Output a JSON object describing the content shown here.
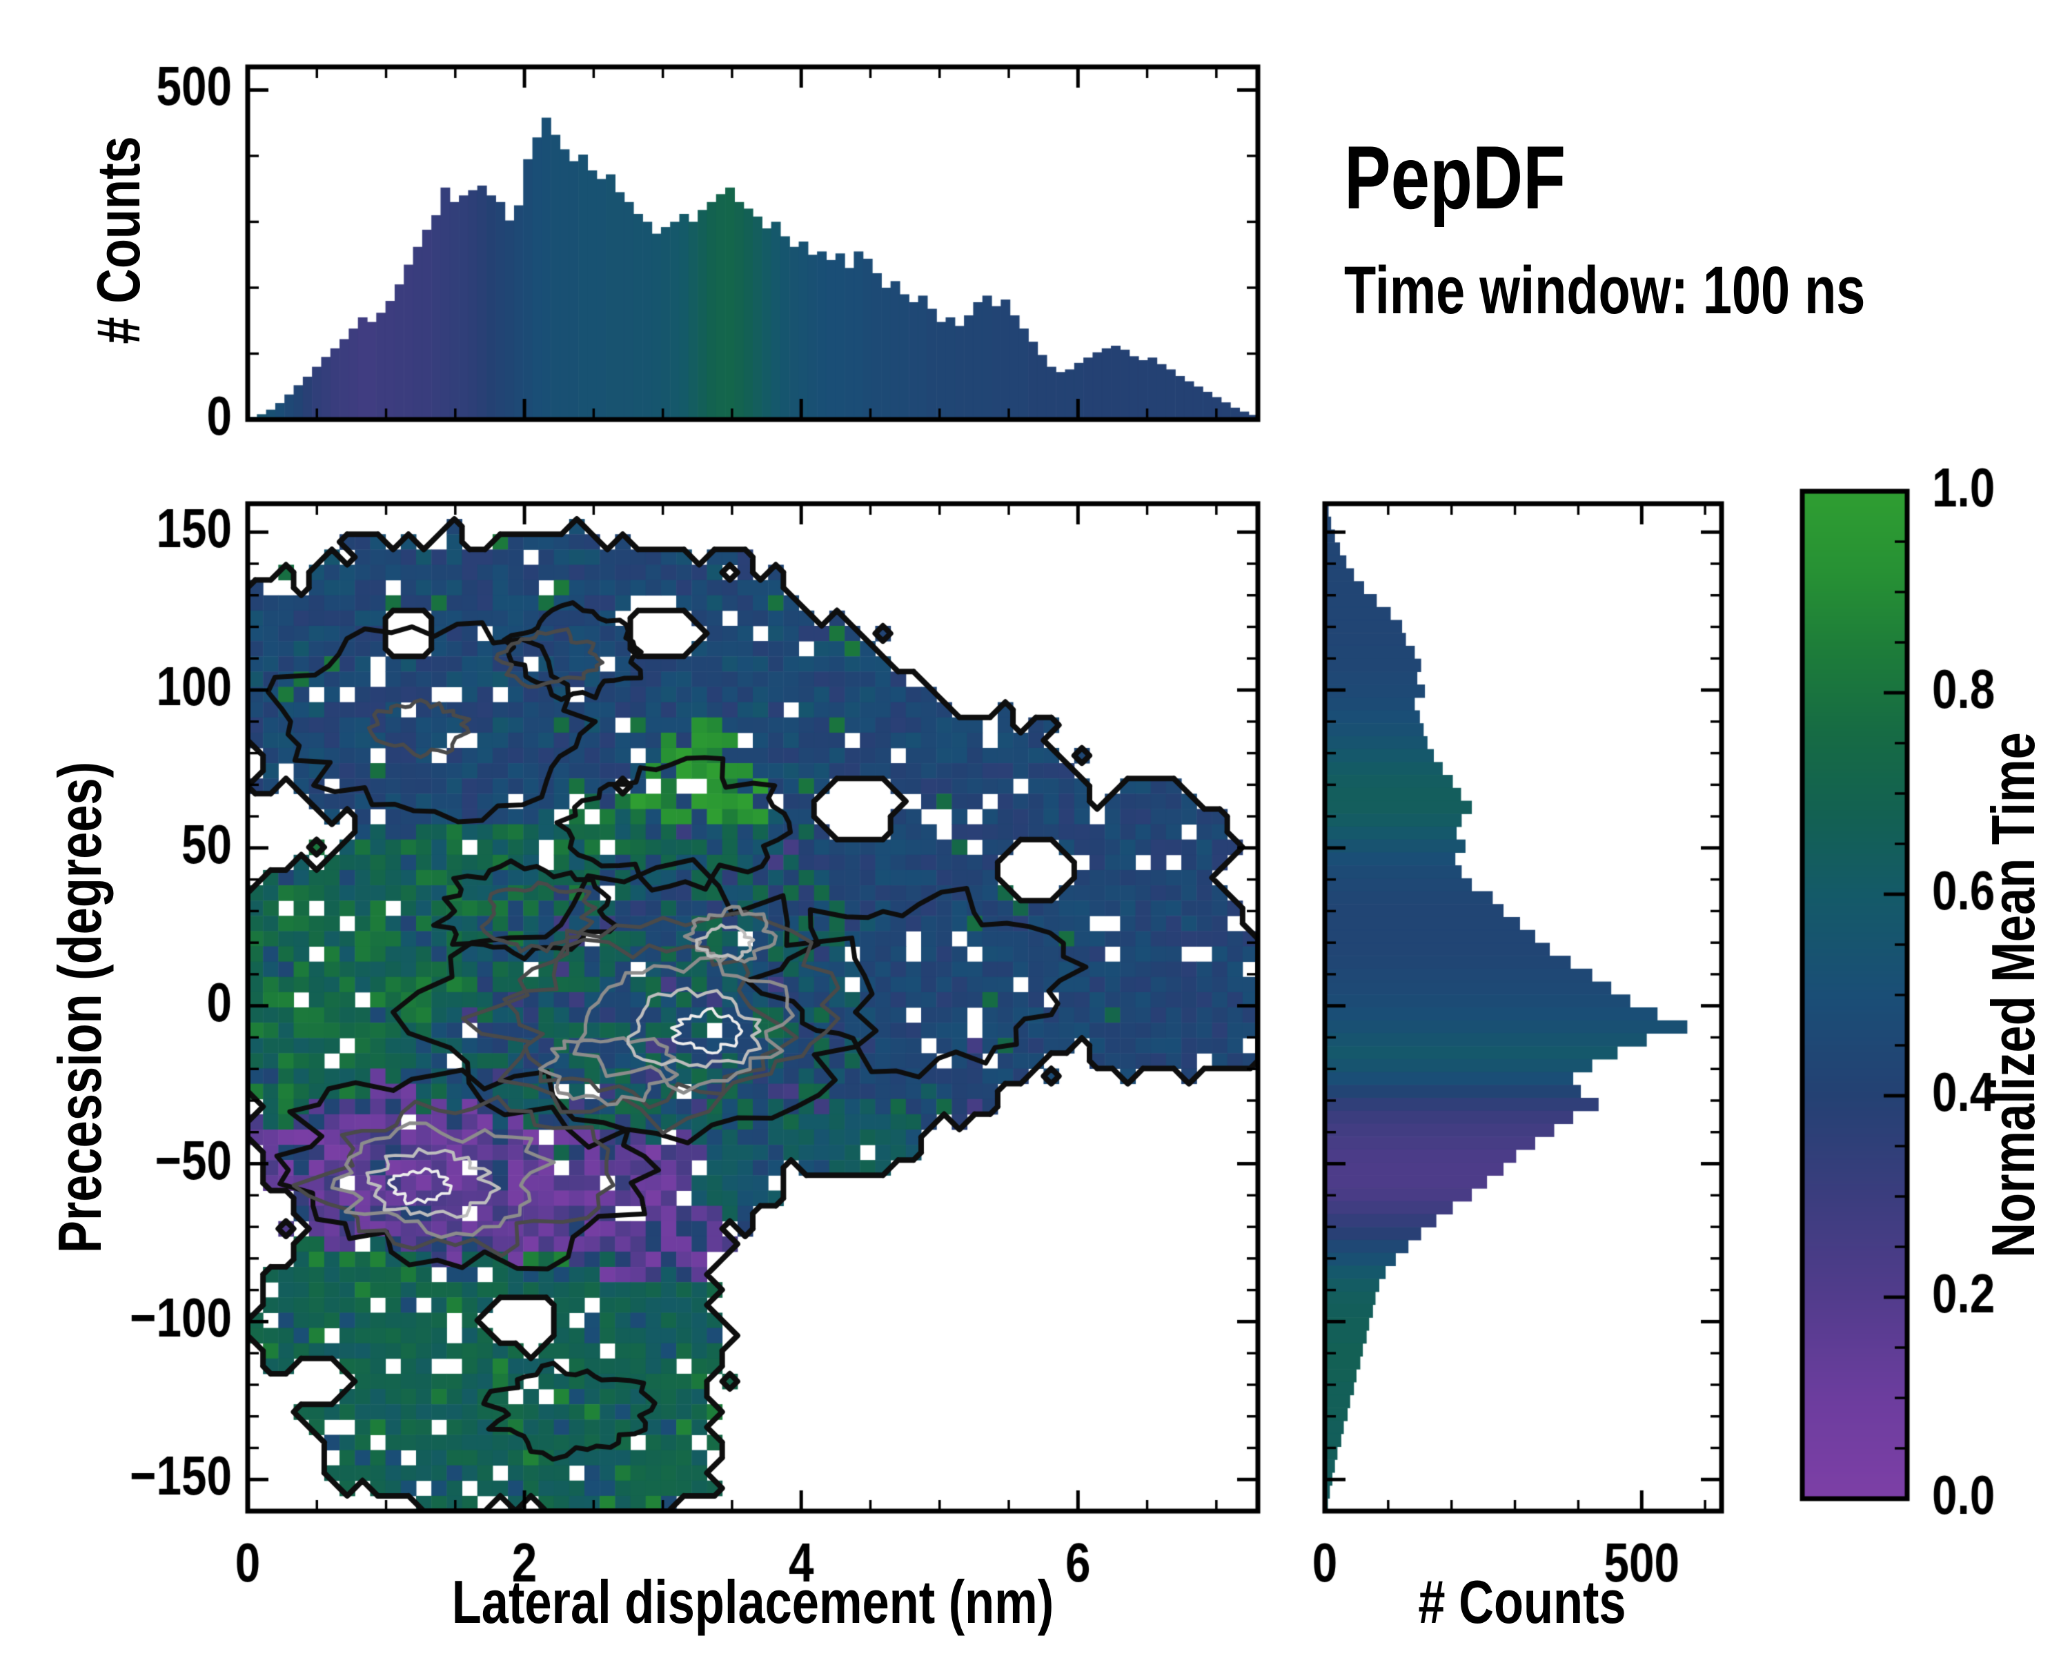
{
  "header": {
    "title": "PepDF",
    "subtitle": "Time window: 100 ns"
  },
  "axes_labels": {
    "top_y": "# Counts",
    "main_x": "Lateral displacement (nm)",
    "main_y": "Precession (degrees)",
    "right_x": "# Counts",
    "colorbar": "Normalized Mean Time"
  },
  "colors": {
    "background": "#ffffff",
    "frame": "#000000",
    "contour_black": "#0e0e0e",
    "contour_dark_gray": "#4a4a4a",
    "contour_gray": "#8c8c8c",
    "contour_light_gray": "#bdbdbd",
    "contour_white": "#ececec",
    "colormap_stops": [
      [
        0.0,
        "#7d3fa6"
      ],
      [
        0.1,
        "#6c3d9e"
      ],
      [
        0.2,
        "#523c8c"
      ],
      [
        0.3,
        "#3b3d7e"
      ],
      [
        0.4,
        "#244173"
      ],
      [
        0.5,
        "#1a4e76"
      ],
      [
        0.6,
        "#145a68"
      ],
      [
        0.68,
        "#136152"
      ],
      [
        0.76,
        "#166b44"
      ],
      [
        0.84,
        "#1d7c3a"
      ],
      [
        0.92,
        "#279134"
      ],
      [
        1.0,
        "#2f9e32"
      ]
    ]
  },
  "chart_data": [
    {
      "id": "top-histogram",
      "type": "bar",
      "orientation": "vertical",
      "xlabel": "",
      "ylabel": "# Counts",
      "xlim": [
        0,
        7.3
      ],
      "ylim": [
        0,
        535
      ],
      "xticks": [
        0,
        2,
        4,
        6
      ],
      "xminor": 0.5,
      "yticks": [
        0,
        500
      ],
      "yminor": 100,
      "bin_width": 0.0664,
      "values": [
        4,
        8,
        15,
        25,
        38,
        52,
        65,
        80,
        95,
        108,
        122,
        138,
        155,
        148,
        162,
        180,
        205,
        235,
        262,
        288,
        310,
        352,
        330,
        340,
        348,
        355,
        340,
        330,
        302,
        325,
        395,
        428,
        458,
        432,
        410,
        392,
        402,
        378,
        365,
        372,
        345,
        330,
        312,
        300,
        282,
        292,
        300,
        312,
        300,
        318,
        330,
        342,
        352,
        330,
        320,
        308,
        290,
        300,
        278,
        262,
        270,
        250,
        255,
        242,
        252,
        230,
        255,
        244,
        222,
        200,
        210,
        190,
        178,
        188,
        168,
        148,
        155,
        142,
        158,
        178,
        188,
        172,
        182,
        158,
        138,
        118,
        98,
        80,
        72,
        76,
        86,
        94,
        102,
        108,
        112,
        106,
        96,
        90,
        94,
        84,
        76,
        66,
        58,
        50,
        42,
        34,
        26,
        18,
        12,
        7
      ],
      "mean_time": [
        0.58,
        0.55,
        0.52,
        0.49,
        0.45,
        0.42,
        0.38,
        0.35,
        0.33,
        0.31,
        0.3,
        0.29,
        0.28,
        0.28,
        0.29,
        0.29,
        0.3,
        0.3,
        0.31,
        0.31,
        0.32,
        0.33,
        0.34,
        0.35,
        0.36,
        0.38,
        0.4,
        0.42,
        0.44,
        0.46,
        0.48,
        0.5,
        0.51,
        0.52,
        0.52,
        0.52,
        0.53,
        0.53,
        0.53,
        0.54,
        0.54,
        0.54,
        0.55,
        0.55,
        0.56,
        0.57,
        0.58,
        0.6,
        0.63,
        0.66,
        0.69,
        0.71,
        0.72,
        0.7,
        0.67,
        0.64,
        0.61,
        0.58,
        0.56,
        0.54,
        0.53,
        0.52,
        0.51,
        0.5,
        0.5,
        0.49,
        0.49,
        0.48,
        0.47,
        0.47,
        0.46,
        0.46,
        0.45,
        0.45,
        0.44,
        0.44,
        0.44,
        0.43,
        0.43,
        0.43,
        0.43,
        0.42,
        0.42,
        0.42,
        0.42,
        0.41,
        0.41,
        0.41,
        0.41,
        0.41,
        0.41,
        0.4,
        0.4,
        0.4,
        0.4,
        0.4,
        0.4,
        0.4,
        0.4,
        0.4,
        0.4,
        0.4,
        0.4,
        0.4,
        0.4,
        0.4,
        0.4,
        0.4,
        0.4,
        0.4
      ]
    },
    {
      "id": "joint-heatmap",
      "type": "heatmap",
      "xlabel": "Lateral displacement (nm)",
      "ylabel": "Precession (degrees)",
      "value_label": "Normalized Mean Time",
      "xlim": [
        0,
        7.3
      ],
      "ylim": [
        -160,
        159
      ],
      "xticks": [
        0,
        2,
        4,
        6
      ],
      "xminor": 0.5,
      "yticks": [
        150,
        100,
        50,
        0,
        -50,
        -100,
        -150
      ],
      "yminor": 10,
      "nx": 66,
      "ny": 66,
      "zones": [
        {
          "name": "top-blue-cluster",
          "base": 0.45,
          "spread": 0.08,
          "hole": 0.07,
          "speckles": [
            {
              "p": 0.03,
              "v": 0.8
            },
            {
              "p": 0.03,
              "v": 0.55
            }
          ],
          "ellipses": [
            [
              1.5,
              100,
              1.7,
              50
            ],
            [
              2.9,
              108,
              1.3,
              38
            ],
            [
              0.55,
              100,
              0.7,
              24
            ],
            [
              3.9,
              92,
              1.0,
              32
            ],
            [
              2.2,
              125,
              1.5,
              25
            ],
            [
              4.5,
              80,
              0.7,
              24
            ]
          ]
        },
        {
          "name": "bright-green-patch",
          "base": 0.92,
          "spread": 0.1,
          "hole": 0.05,
          "speckles": [
            {
              "p": 0.06,
              "v": 0.45
            }
          ],
          "ellipses": [
            [
              3.3,
              75,
              0.55,
              24
            ]
          ]
        },
        {
          "name": "right-blue-arm",
          "base": 0.44,
          "spread": 0.07,
          "hole": 0.08,
          "speckles": [
            {
              "p": 0.02,
              "v": 0.75
            }
          ],
          "ellipses": [
            [
              5.1,
              55,
              1.15,
              40
            ],
            [
              5.9,
              28,
              1.25,
              36
            ],
            [
              6.6,
              8,
              0.95,
              30
            ],
            [
              6.95,
              -3,
              0.55,
              20
            ],
            [
              5.3,
              12,
              1.05,
              36
            ],
            [
              4.7,
              -8,
              0.9,
              30
            ],
            [
              6.5,
              52,
              0.6,
              20
            ]
          ]
        },
        {
          "name": "center-mixed",
          "base": 0.55,
          "spread": 0.2,
          "hole": 0.03,
          "speckles": [
            {
              "p": 0.14,
              "v": 0.44
            },
            {
              "p": 0.1,
              "v": 0.72
            },
            {
              "p": 0.05,
              "v": 0.28
            }
          ],
          "ellipses": [
            [
              3.0,
              5,
              1.9,
              50
            ],
            [
              2.1,
              -15,
              1.5,
              42
            ],
            [
              3.9,
              -12,
              1.5,
              38
            ],
            [
              3.1,
              35,
              1.4,
              30
            ]
          ]
        },
        {
          "name": "mid-green-band",
          "base": 0.7,
          "spread": 0.14,
          "hole": 0.05,
          "speckles": [
            {
              "p": 0.1,
              "v": 0.45
            }
          ],
          "ellipses": [
            [
              1.6,
              32,
              1.3,
              26
            ],
            [
              2.5,
              45,
              1.1,
              20
            ],
            [
              0.9,
              18,
              0.9,
              24
            ]
          ]
        },
        {
          "name": "left-green-arm",
          "base": 0.74,
          "spread": 0.12,
          "hole": 0.07,
          "speckles": [
            {
              "p": 0.08,
              "v": 0.45
            }
          ],
          "ellipses": [
            [
              0.55,
              -12,
              0.75,
              35
            ],
            [
              1.05,
              0,
              0.85,
              28
            ],
            [
              0.4,
              22,
              0.5,
              20
            ]
          ]
        },
        {
          "name": "purple-region",
          "base": 0.13,
          "spread": 0.11,
          "hole": 0.04,
          "speckles": [
            {
              "p": 0.12,
              "v": 0.42
            },
            {
              "p": 0.08,
              "v": 0.3
            }
          ],
          "ellipses": [
            [
              1.5,
              -52,
              1.35,
              33
            ],
            [
              2.5,
              -62,
              1.1,
              28
            ],
            [
              0.85,
              -38,
              0.8,
              20
            ],
            [
              2.95,
              -72,
              0.55,
              20
            ]
          ]
        },
        {
          "name": "bottom-teal-region",
          "base": 0.68,
          "spread": 0.07,
          "hole": 0.1,
          "speckles": [
            {
              "p": 0.05,
              "v": 0.85
            },
            {
              "p": 0.06,
              "v": 0.5
            }
          ],
          "ellipses": [
            [
              1.6,
              -122,
              1.3,
              40
            ],
            [
              2.45,
              -132,
              0.9,
              30
            ],
            [
              0.85,
              -100,
              0.75,
              28
            ],
            [
              2.8,
              -108,
              0.7,
              28
            ],
            [
              2.0,
              -95,
              1.0,
              22
            ],
            [
              3.0,
              -142,
              0.45,
              16
            ]
          ]
        },
        {
          "name": "teal-spur",
          "base": 0.6,
          "spread": 0.1,
          "hole": 0.05,
          "speckles": [
            {
              "p": 0.1,
              "v": 0.45
            }
          ],
          "ellipses": [
            [
              4.35,
              -38,
              0.55,
              16
            ],
            [
              3.5,
              -55,
              0.4,
              12
            ]
          ]
        }
      ],
      "gaps": [
        [
          1.95,
          -100,
          0.3,
          9
        ],
        [
          5.7,
          44,
          0.3,
          9
        ],
        [
          4.4,
          62,
          0.32,
          9
        ],
        [
          0.5,
          -118,
          0.22,
          7
        ],
        [
          3.0,
          118,
          0.25,
          7
        ],
        [
          1.15,
          118,
          0.22,
          6
        ]
      ],
      "contours": {
        "black": [
          [
            2.95,
            -2,
            1.55,
            40
          ],
          [
            1.35,
            90,
            1.05,
            28
          ],
          [
            2.35,
            112,
            0.5,
            13
          ],
          [
            1.55,
            -52,
            1.3,
            30
          ],
          [
            4.85,
            8,
            1.05,
            26
          ],
          [
            2.3,
            -128,
            0.55,
            13
          ],
          [
            3.05,
            58,
            0.75,
            18
          ],
          [
            2.0,
            30,
            0.6,
            14
          ]
        ],
        "dark_gray": [
          [
            3.0,
            -4,
            1.2,
            31
          ],
          [
            2.9,
            -6,
            0.95,
            25
          ],
          [
            1.5,
            -53,
            1.0,
            23
          ],
          [
            2.2,
            110,
            0.33,
            8
          ],
          [
            1.25,
            88,
            0.3,
            8
          ],
          [
            2.1,
            28,
            0.4,
            10
          ]
        ],
        "gray": [
          [
            3.15,
            -6,
            0.75,
            19
          ],
          [
            1.4,
            -55,
            0.7,
            16
          ],
          [
            3.5,
            22,
            0.3,
            8
          ],
          [
            2.6,
            -20,
            0.45,
            11
          ]
        ],
        "light_gray": [
          [
            3.25,
            -8,
            0.45,
            12
          ],
          [
            1.3,
            -56,
            0.42,
            10
          ],
          [
            3.45,
            20,
            0.18,
            5
          ]
        ],
        "white": [
          [
            3.32,
            -8,
            0.22,
            6
          ],
          [
            1.25,
            -57,
            0.2,
            5
          ]
        ]
      }
    },
    {
      "id": "right-histogram",
      "type": "bar",
      "orientation": "horizontal",
      "xlabel": "# Counts",
      "ylabel": "",
      "xlim": [
        0,
        626
      ],
      "ylim": [
        -160,
        159
      ],
      "xticks": [
        0,
        500
      ],
      "xminor": 100,
      "yticks": [
        150,
        100,
        50,
        0,
        -50,
        -100,
        -150
      ],
      "yminor": 10,
      "bin_height": 4,
      "y_start": 150,
      "values": [
        6,
        10,
        16,
        24,
        34,
        46,
        62,
        82,
        104,
        122,
        128,
        142,
        152,
        146,
        158,
        142,
        150,
        156,
        162,
        172,
        186,
        202,
        215,
        232,
        216,
        208,
        222,
        206,
        216,
        232,
        265,
        282,
        308,
        332,
        355,
        388,
        422,
        452,
        482,
        525,
        572,
        508,
        462,
        422,
        392,
        404,
        432,
        392,
        362,
        332,
        302,
        282,
        256,
        232,
        202,
        176,
        152,
        132,
        112,
        96,
        86,
        80,
        76,
        70,
        66,
        60,
        56,
        50,
        46,
        40,
        36,
        30,
        26,
        20,
        16,
        12,
        8,
        5
      ],
      "mean_time": [
        0.44,
        0.44,
        0.43,
        0.43,
        0.43,
        0.43,
        0.43,
        0.43,
        0.43,
        0.43,
        0.43,
        0.44,
        0.44,
        0.45,
        0.46,
        0.48,
        0.5,
        0.52,
        0.55,
        0.58,
        0.61,
        0.63,
        0.64,
        0.64,
        0.62,
        0.58,
        0.54,
        0.5,
        0.47,
        0.45,
        0.44,
        0.43,
        0.43,
        0.43,
        0.43,
        0.44,
        0.45,
        0.46,
        0.48,
        0.5,
        0.52,
        0.55,
        0.58,
        0.55,
        0.5,
        0.42,
        0.35,
        0.3,
        0.27,
        0.25,
        0.23,
        0.22,
        0.22,
        0.24,
        0.28,
        0.33,
        0.38,
        0.45,
        0.52,
        0.58,
        0.62,
        0.64,
        0.65,
        0.66,
        0.66,
        0.67,
        0.67,
        0.67,
        0.66,
        0.66,
        0.66,
        0.65,
        0.65,
        0.65,
        0.64,
        0.64,
        0.63,
        0.63
      ]
    },
    {
      "id": "colorbar",
      "type": "colorbar",
      "label": "Normalized Mean Time",
      "range": [
        0,
        1
      ],
      "ticks": [
        1.0,
        0.8,
        0.6,
        0.4,
        0.2,
        0.0
      ],
      "minor": 0.05
    }
  ]
}
